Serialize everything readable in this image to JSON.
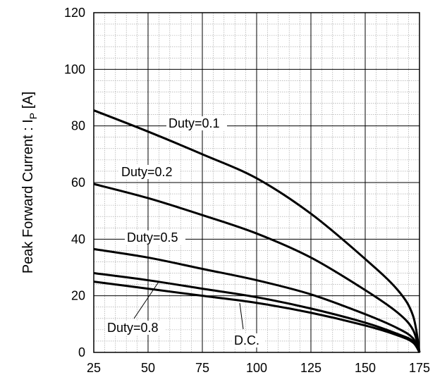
{
  "chart_data": {
    "type": "line",
    "title": "",
    "xlabel": "",
    "ylabel": {
      "main": "Peak Forward Current : I",
      "sub": "P",
      "unit": " [A]"
    },
    "xlim": [
      25,
      175
    ],
    "ylim": [
      0,
      120
    ],
    "xticks": [
      "25",
      "50",
      "75",
      "100",
      "125",
      "150",
      "175"
    ],
    "yticks": [
      "0",
      "20",
      "40",
      "60",
      "80",
      "100",
      "120"
    ],
    "grid": true,
    "series": [
      {
        "name": "Duty=0.1",
        "x": [
          25,
          50,
          75,
          100,
          125,
          150,
          165,
          172,
          175
        ],
        "y": [
          85.5,
          78,
          70,
          61.5,
          49,
          33,
          22,
          13,
          0
        ]
      },
      {
        "name": "Duty=0.2",
        "x": [
          25,
          50,
          75,
          100,
          125,
          150,
          165,
          172,
          175
        ],
        "y": [
          59.5,
          54.5,
          48.5,
          42,
          33.5,
          22,
          14,
          8,
          0
        ]
      },
      {
        "name": "Duty=0.5",
        "x": [
          25,
          50,
          75,
          100,
          125,
          150,
          165,
          172,
          175
        ],
        "y": [
          36.5,
          33.5,
          29.5,
          25.5,
          20.5,
          13.5,
          8.5,
          5,
          0
        ]
      },
      {
        "name": "Duty=0.8",
        "x": [
          25,
          50,
          75,
          100,
          125,
          150,
          165,
          172,
          175
        ],
        "y": [
          28,
          25.5,
          22.5,
          19.5,
          15.5,
          10.5,
          6.5,
          4,
          0
        ]
      },
      {
        "name": "D.C.",
        "x": [
          25,
          50,
          75,
          100,
          125,
          150,
          165,
          172,
          175
        ],
        "y": [
          25,
          22.5,
          20,
          17.5,
          14,
          9.5,
          6,
          3.5,
          0
        ]
      }
    ],
    "annotations": [
      {
        "text": "Duty=0.1",
        "series": "Duty=0.1"
      },
      {
        "text": "Duty=0.2",
        "series": "Duty=0.2"
      },
      {
        "text": "Duty=0.5",
        "series": "Duty=0.5"
      },
      {
        "text": "Duty=0.8",
        "series": "Duty=0.8"
      },
      {
        "text": "D.C.",
        "series": "D.C."
      }
    ]
  }
}
